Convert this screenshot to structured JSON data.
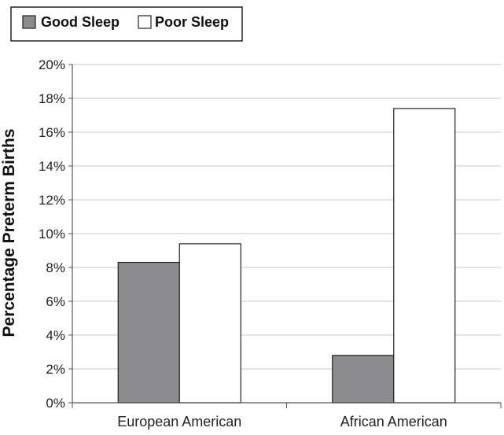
{
  "chart_data": {
    "type": "bar",
    "title": "",
    "xlabel": "",
    "ylabel": "Percentage Preterm Births",
    "categories": [
      "European American",
      "African American"
    ],
    "series": [
      {
        "name": "Good Sleep",
        "values": [
          8.3,
          2.8
        ],
        "color": "#8c8c8e"
      },
      {
        "name": "Poor Sleep",
        "values": [
          9.4,
          17.4
        ],
        "color": "#ffffff"
      }
    ],
    "ylim": [
      0,
      20
    ],
    "yticks": [
      0,
      2,
      4,
      6,
      8,
      10,
      12,
      14,
      16,
      18,
      20
    ],
    "ytick_labels": [
      "0%",
      "2%",
      "4%",
      "6%",
      "8%",
      "10%",
      "12%",
      "14%",
      "16%",
      "18%",
      "20%"
    ],
    "grid": true,
    "legend_position": "top-left"
  }
}
